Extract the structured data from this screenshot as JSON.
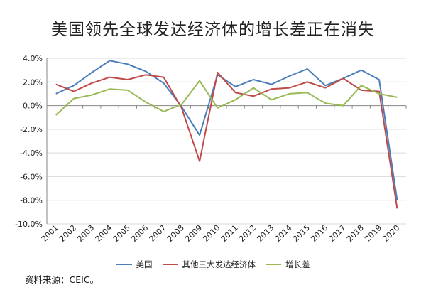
{
  "title": "美国领先全球发达经济体的增长差正在消失",
  "source": "资料来源：CEIC。",
  "colors": {
    "series_0": "#4a7ebb",
    "series_1": "#be4b48",
    "series_2": "#98b954",
    "grid": "#d9d9d9",
    "axis": "#868686"
  },
  "chart_data": {
    "type": "line",
    "title": "美国领先全球发达经济体的增长差正在消失",
    "x": [
      "2001",
      "2002",
      "2003",
      "2004",
      "2005",
      "2006",
      "2007",
      "2008",
      "2009",
      "2010",
      "2011",
      "2012",
      "2013",
      "2014",
      "2015",
      "2016",
      "2017",
      "2018",
      "2019",
      "2020"
    ],
    "yticks": [
      "4.0%",
      "2.0%",
      "0.0%",
      "-2.0%",
      "-4.0%",
      "-6.0%",
      "-8.0%",
      "-10.0%"
    ],
    "ylim": [
      -10,
      4
    ],
    "grid": true,
    "legend_position": "bottom",
    "series": [
      {
        "name": "美国",
        "values": [
          1.0,
          1.7,
          2.8,
          3.8,
          3.5,
          2.9,
          1.9,
          -0.1,
          -2.5,
          2.6,
          1.6,
          2.2,
          1.8,
          2.5,
          3.1,
          1.7,
          2.3,
          3.0,
          2.2,
          -8.0
        ]
      },
      {
        "name": "其他三大发达经济体",
        "values": [
          1.8,
          1.2,
          1.9,
          2.4,
          2.2,
          2.6,
          2.4,
          -0.2,
          -4.7,
          2.8,
          1.1,
          0.8,
          1.4,
          1.5,
          2.0,
          1.5,
          2.3,
          1.3,
          1.2,
          -8.7
        ]
      },
      {
        "name": "增长差",
        "values": [
          -0.8,
          0.6,
          0.9,
          1.4,
          1.3,
          0.3,
          -0.5,
          0.1,
          2.1,
          -0.2,
          0.5,
          1.5,
          0.5,
          1.0,
          1.1,
          0.2,
          0.0,
          1.7,
          1.0,
          0.7
        ]
      }
    ]
  }
}
